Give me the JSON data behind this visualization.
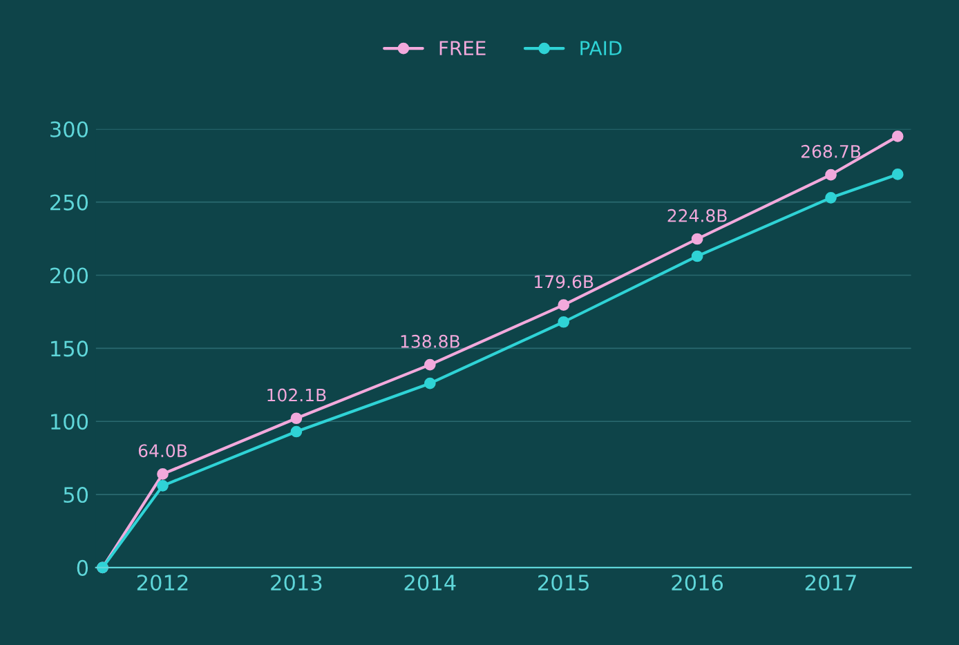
{
  "chart_data": {
    "type": "line",
    "xlim": [
      2011.5,
      2017.6
    ],
    "xticks": [
      2012,
      2013,
      2014,
      2015,
      2016,
      2017
    ],
    "ylim": [
      0,
      300
    ],
    "yticks": [
      0,
      50,
      100,
      150,
      200,
      250,
      300
    ],
    "grid": "y",
    "legend": "top",
    "marker": "circle",
    "series": [
      {
        "name": "FREE",
        "color": "#f2a9dc",
        "x": [
          2011.55,
          2012,
          2013,
          2014,
          2015,
          2016,
          2017,
          2017.5
        ],
        "values": [
          0,
          64.0,
          102.1,
          138.8,
          179.6,
          224.8,
          268.7,
          295
        ],
        "value_labels": [
          null,
          "64.0B",
          "102.1B",
          "138.8B",
          "179.6B",
          "224.8B",
          "268.7B",
          null
        ]
      },
      {
        "name": "PAID",
        "color": "#2fd3d6",
        "x": [
          2011.55,
          2012,
          2013,
          2014,
          2015,
          2016,
          2017,
          2017.5
        ],
        "values": [
          0,
          56,
          93,
          126,
          168,
          213,
          253,
          269
        ]
      }
    ]
  }
}
